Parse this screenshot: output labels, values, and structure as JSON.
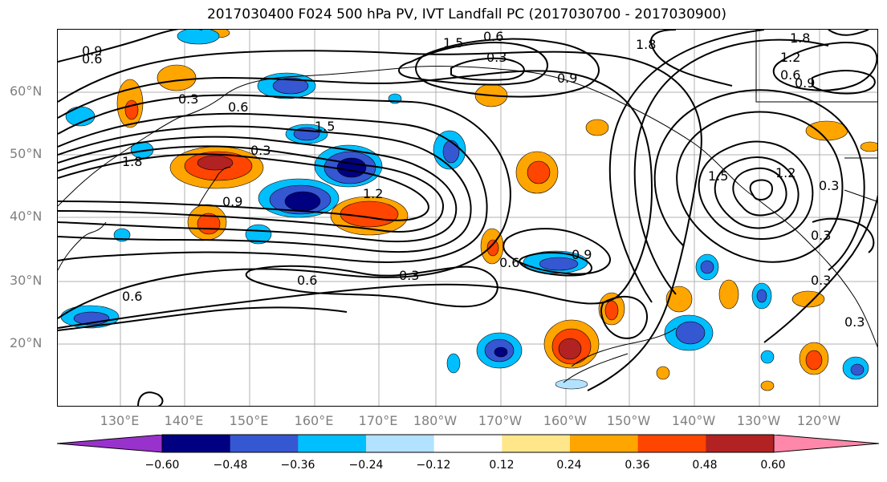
{
  "title": "2017030400 F024 500 hPa PV, IVT Landfall PC (2017030700 - 2017030900)",
  "lat_labels": [
    "60°N",
    "50°N",
    "40°N",
    "30°N",
    "20°N"
  ],
  "lon_labels": [
    "130°E",
    "140°E",
    "150°E",
    "160°E",
    "170°E",
    "180°W",
    "170°W",
    "160°W",
    "150°W",
    "140°W",
    "130°W",
    "120°W"
  ],
  "contour_labels": [
    "0.9",
    "0.6",
    "0.3",
    "0.6",
    "1.5",
    "1.8",
    "0.9",
    "0.6",
    "1.5",
    "1.8",
    "0.9",
    "1.5",
    "1.2",
    "0.3",
    "0.3",
    "0.3",
    "0.6",
    "0.3",
    "0.6",
    "0.9",
    "0.6",
    "0.3",
    "0.9",
    "0.3",
    "0.6",
    "1.2",
    "1.8",
    "1.2",
    "0.3"
  ],
  "colorbar": {
    "tick_labels": [
      "−0.60",
      "−0.48",
      "−0.36",
      "−0.24",
      "−0.12",
      "0.12",
      "0.24",
      "0.36",
      "0.48",
      "0.60"
    ],
    "colors": [
      "#9932cc",
      "#000080",
      "#3557d2",
      "#00bfff",
      "#b2e2ff",
      "#ffffff",
      "#ffe68a",
      "#ffa500",
      "#ff4500",
      "#b22222",
      "#ff88aa"
    ]
  }
}
